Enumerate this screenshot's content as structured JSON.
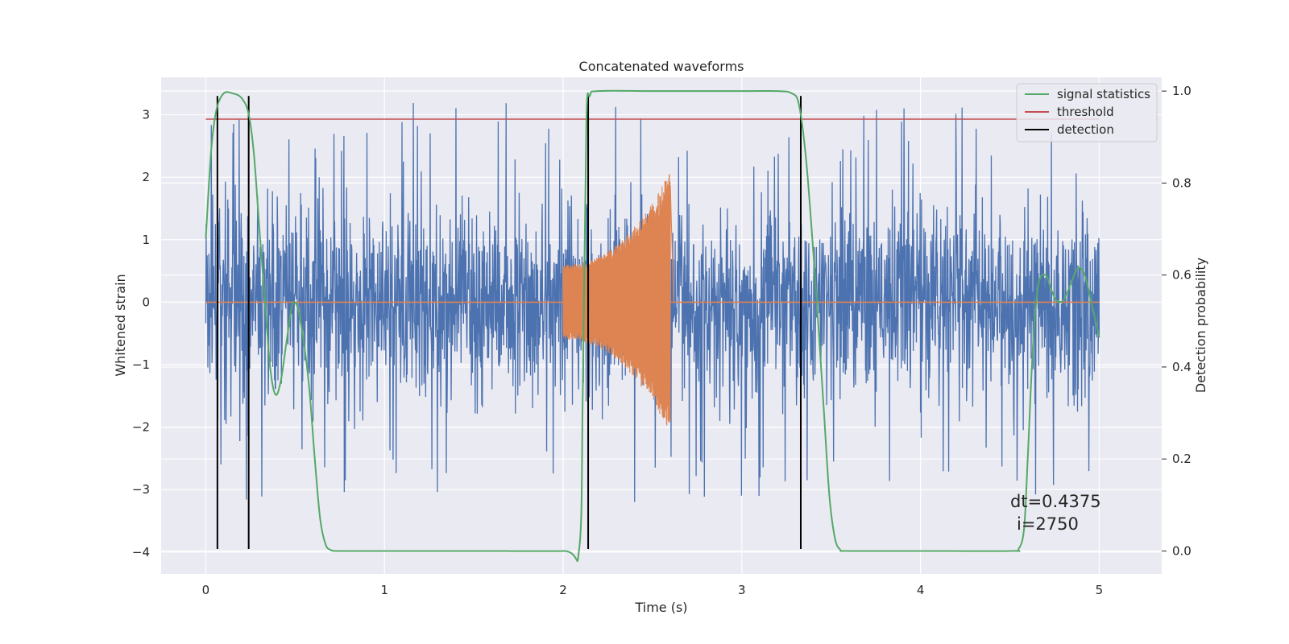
{
  "chart_data": {
    "type": "line",
    "title": "Concatenated waveforms",
    "xlabel": "Time (s)",
    "ylabel": "Whitened strain",
    "y2label": "Detection probability",
    "xlim": [
      -0.25,
      5.35
    ],
    "ylim": [
      -4.35,
      3.6
    ],
    "y2lim": [
      -0.05,
      1.03
    ],
    "x_ticks": [
      0,
      1,
      2,
      3,
      4,
      5
    ],
    "y_ticks": [
      -4,
      -3,
      -2,
      -1,
      0,
      1,
      2,
      3
    ],
    "y2_ticks": [
      0.0,
      0.2,
      0.4,
      0.6,
      0.8,
      1.0
    ],
    "grid": true,
    "background": "#eaeaf2",
    "legend_position": "top-right",
    "annotation_lines": [
      "dt=0.4375",
      "i=2750"
    ],
    "series": [
      {
        "key": "noise",
        "color": "#4c72b0",
        "axis": "left",
        "x_range": [
          0,
          5
        ],
        "typical_range": [
          -2.3,
          2.3
        ],
        "peak_range": [
          -3.95,
          3.25
        ]
      },
      {
        "key": "injected",
        "color": "#dd8452",
        "axis": "left",
        "x_range": [
          0,
          5
        ],
        "burst_x_range": [
          2.0,
          2.6
        ],
        "burst_start_amplitude": 0.6,
        "burst_end_amplitude": 2.1
      },
      {
        "name": "signal statistics",
        "color": "#55a868",
        "axis": "right",
        "x": [
          0,
          0.03,
          0.06,
          0.1,
          0.15,
          0.2,
          0.24,
          0.27,
          0.3,
          0.33,
          0.36,
          0.39,
          0.42,
          0.45,
          0.48,
          0.5,
          0.52,
          0.55,
          0.58,
          0.61,
          0.64,
          0.67,
          0.7,
          0.75,
          1.0,
          1.5,
          2.0,
          2.09,
          2.11,
          2.13,
          2.15,
          2.2,
          2.5,
          3.0,
          3.2,
          3.28,
          3.32,
          3.36,
          3.4,
          3.43,
          3.46,
          3.49,
          3.52,
          3.55,
          3.6,
          4.0,
          4.5,
          4.55,
          4.58,
          4.6,
          4.63,
          4.66,
          4.7,
          4.73,
          4.76,
          4.8,
          4.84,
          4.88,
          4.92,
          4.95,
          4.98,
          5.0
        ],
        "y": [
          0.68,
          0.87,
          0.96,
          0.995,
          0.995,
          0.985,
          0.95,
          0.86,
          0.7,
          0.55,
          0.4,
          0.34,
          0.37,
          0.45,
          0.53,
          0.54,
          0.52,
          0.45,
          0.35,
          0.2,
          0.07,
          0.015,
          0.002,
          0.0,
          0.0,
          0.0,
          0.0,
          0.005,
          0.35,
          0.93,
          0.99,
          1.0,
          1.0,
          1.0,
          1.0,
          0.995,
          0.97,
          0.85,
          0.65,
          0.48,
          0.3,
          0.12,
          0.03,
          0.003,
          0.0,
          0.0,
          0.0,
          0.005,
          0.05,
          0.2,
          0.45,
          0.58,
          0.6,
          0.57,
          0.545,
          0.545,
          0.58,
          0.615,
          0.6,
          0.55,
          0.5,
          0.465
        ]
      },
      {
        "name": "threshold",
        "color": "#c44e52",
        "axis": "left",
        "x": [
          0,
          5
        ],
        "y": [
          2.93,
          2.93
        ]
      },
      {
        "name": "detection",
        "color": "#000000",
        "axis": "left",
        "x": [
          0.065,
          0.24,
          2.14,
          3.33
        ],
        "y_range": [
          -3.95,
          3.3
        ]
      }
    ]
  }
}
